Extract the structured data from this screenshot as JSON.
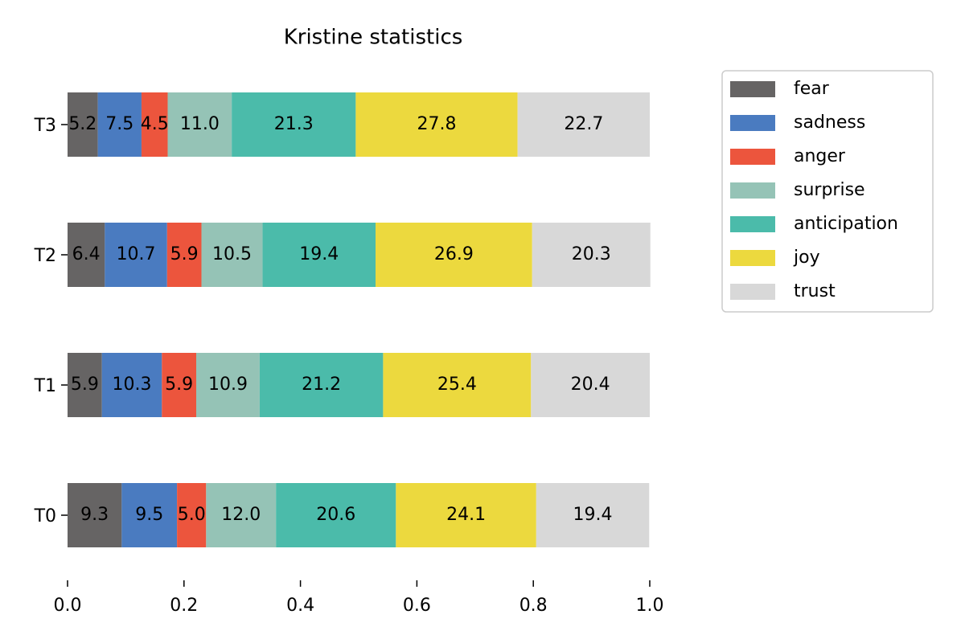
{
  "chart_data": {
    "type": "stacked-barh",
    "title": "Kristine statistics",
    "categories": [
      "T0",
      "T1",
      "T2",
      "T3"
    ],
    "series": [
      {
        "name": "fear",
        "color": "#666464",
        "values": [
          0.093,
          0.059,
          0.064,
          0.052
        ],
        "value_labels": [
          "9.3",
          "5.9",
          "6.4",
          "5.2"
        ]
      },
      {
        "name": "sadness",
        "color": "#4a7bc0",
        "values": [
          0.095,
          0.103,
          0.107,
          0.075
        ],
        "value_labels": [
          "9.5",
          "10.3",
          "10.7",
          "7.5"
        ]
      },
      {
        "name": "anger",
        "color": "#ec553d",
        "values": [
          0.05,
          0.059,
          0.059,
          0.045
        ],
        "value_labels": [
          "5.0",
          "5.9",
          "5.9",
          "4.5"
        ]
      },
      {
        "name": "surprise",
        "color": "#95c3b6",
        "values": [
          0.12,
          0.109,
          0.105,
          0.11
        ],
        "value_labels": [
          "12.0",
          "10.9",
          "10.5",
          "11.0"
        ]
      },
      {
        "name": "anticipation",
        "color": "#4bbbaa",
        "values": [
          0.206,
          0.212,
          0.194,
          0.213
        ],
        "value_labels": [
          "20.6",
          "21.2",
          "19.4",
          "21.3"
        ]
      },
      {
        "name": "joy",
        "color": "#ecd93e",
        "values": [
          0.241,
          0.254,
          0.269,
          0.278
        ],
        "value_labels": [
          "24.1",
          "25.4",
          "26.9",
          "27.8"
        ]
      },
      {
        "name": "trust",
        "color": "#d8d8d8",
        "values": [
          0.194,
          0.204,
          0.203,
          0.227
        ],
        "value_labels": [
          "19.4",
          "20.4",
          "20.3",
          "22.7"
        ]
      }
    ],
    "xlim": [
      0,
      1
    ],
    "xticks": [
      {
        "value": 0,
        "label": "0.0"
      },
      0.2,
      0.4,
      0.6,
      0.8,
      {
        "value": 1,
        "label": "1.0"
      }
    ],
    "legend": "upper-right-outside"
  }
}
